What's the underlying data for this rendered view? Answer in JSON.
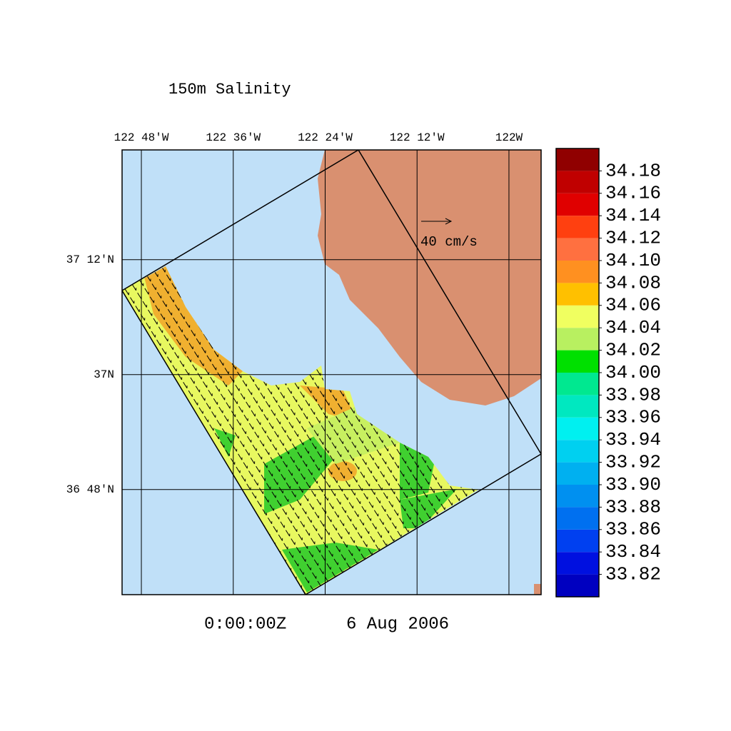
{
  "chart_data": {
    "type": "map",
    "title": "150m Salinity",
    "time": "0:00:00Z",
    "date": "6 Aug 2006",
    "scale_label": "40 cm/s",
    "xlim": [
      -122.842,
      -121.93
    ],
    "ylim": [
      36.617,
      37.391
    ],
    "xticks": [
      {
        "value": -122.8,
        "label": "122 48'W"
      },
      {
        "value": -122.6,
        "label": "122 36'W"
      },
      {
        "value": -122.4,
        "label": "122 24'W"
      },
      {
        "value": -122.2,
        "label": "122 12'W"
      },
      {
        "value": -122,
        "label": "122W"
      }
    ],
    "yticks": [
      {
        "value": 37.2,
        "label": "37 12'N"
      },
      {
        "value": 37,
        "label": "37N"
      },
      {
        "value": 36.8,
        "label": "36 48'N"
      }
    ],
    "grid": true,
    "colorbar": {
      "levels": [
        33.8,
        33.82,
        33.84,
        33.86,
        33.88,
        33.9,
        33.92,
        33.94,
        33.96,
        33.98,
        34,
        34.02,
        34.04,
        34.06,
        34.08,
        34.1,
        34.12,
        34.14,
        34.16,
        34.18,
        34.2
      ],
      "colors": [
        "#0000c0",
        "#0010e0",
        "#0040f0",
        "#0070f0",
        "#0090f0",
        "#00b0f0",
        "#00d0f0",
        "#00f0f0",
        "#00e8c0",
        "#00e890",
        "#00e000",
        "#b8f060",
        "#f0ff60",
        "#ffc000",
        "#ff9020",
        "#ff7040",
        "#ff4010",
        "#e00000",
        "#c00000",
        "#900000"
      ],
      "ticks": [
        33.82,
        33.84,
        33.86,
        33.88,
        {
          "value": 33.9,
          "label": "33.90"
        },
        33.92,
        33.94,
        33.96,
        33.98,
        {
          "value": 34,
          "label": "34.00"
        },
        34.02,
        34.04,
        34.06,
        34.08,
        {
          "value": 34.1,
          "label": "34.10"
        },
        34.12,
        34.14,
        34.16,
        34.18
      ]
    }
  }
}
